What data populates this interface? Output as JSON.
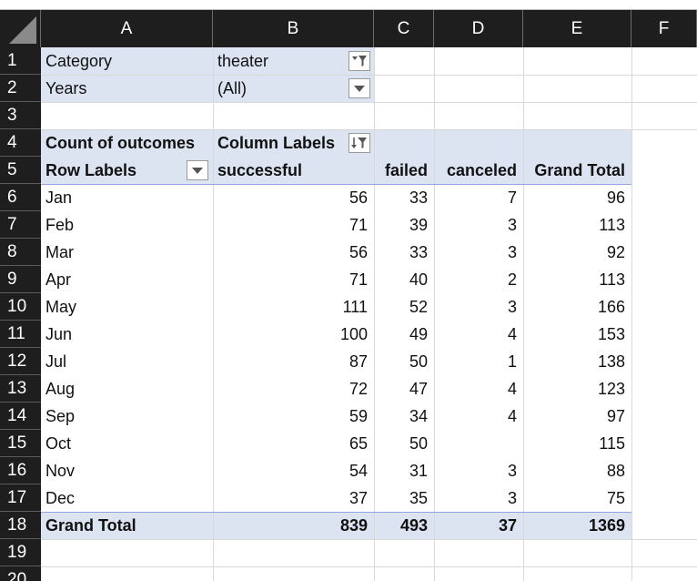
{
  "columns": [
    "A",
    "B",
    "C",
    "D",
    "E",
    "F"
  ],
  "rows": [
    "1",
    "2",
    "3",
    "4",
    "5",
    "6",
    "7",
    "8",
    "9",
    "10",
    "11",
    "12",
    "13",
    "14",
    "15",
    "16",
    "17",
    "18",
    "19",
    "20"
  ],
  "filters": {
    "category_label": "Category",
    "category_value": "theater",
    "years_label": "Years",
    "years_value": "(All)"
  },
  "pivot": {
    "corner_label": "Count of outcomes",
    "column_labels": "Column Labels",
    "row_labels": "Row Labels",
    "headers": [
      "successful",
      "failed",
      "canceled",
      "Grand Total"
    ],
    "rows": [
      {
        "label": "Jan",
        "successful": "56",
        "failed": "33",
        "canceled": "7",
        "total": "96"
      },
      {
        "label": "Feb",
        "successful": "71",
        "failed": "39",
        "canceled": "3",
        "total": "113"
      },
      {
        "label": "Mar",
        "successful": "56",
        "failed": "33",
        "canceled": "3",
        "total": "92"
      },
      {
        "label": "Apr",
        "successful": "71",
        "failed": "40",
        "canceled": "2",
        "total": "113"
      },
      {
        "label": "May",
        "successful": "111",
        "failed": "52",
        "canceled": "3",
        "total": "166"
      },
      {
        "label": "Jun",
        "successful": "100",
        "failed": "49",
        "canceled": "4",
        "total": "153"
      },
      {
        "label": "Jul",
        "successful": "87",
        "failed": "50",
        "canceled": "1",
        "total": "138"
      },
      {
        "label": "Aug",
        "successful": "72",
        "failed": "47",
        "canceled": "4",
        "total": "123"
      },
      {
        "label": "Sep",
        "successful": "59",
        "failed": "34",
        "canceled": "4",
        "total": "97"
      },
      {
        "label": "Oct",
        "successful": "65",
        "failed": "50",
        "canceled": "",
        "total": "115"
      },
      {
        "label": "Nov",
        "successful": "54",
        "failed": "31",
        "canceled": "3",
        "total": "88"
      },
      {
        "label": "Dec",
        "successful": "37",
        "failed": "35",
        "canceled": "3",
        "total": "75"
      }
    ],
    "grand_total": {
      "label": "Grand Total",
      "successful": "839",
      "failed": "493",
      "canceled": "37",
      "total": "1369"
    }
  },
  "icons": {
    "filter_applied": "funnel-dropdown-icon",
    "dropdown": "chevron-down-icon",
    "sort_filter": "sort-filter-icon"
  },
  "colors": {
    "header_bg": "#1e1e1e",
    "pivot_fill": "#dce3f1",
    "pivot_border": "#8ea9db"
  }
}
